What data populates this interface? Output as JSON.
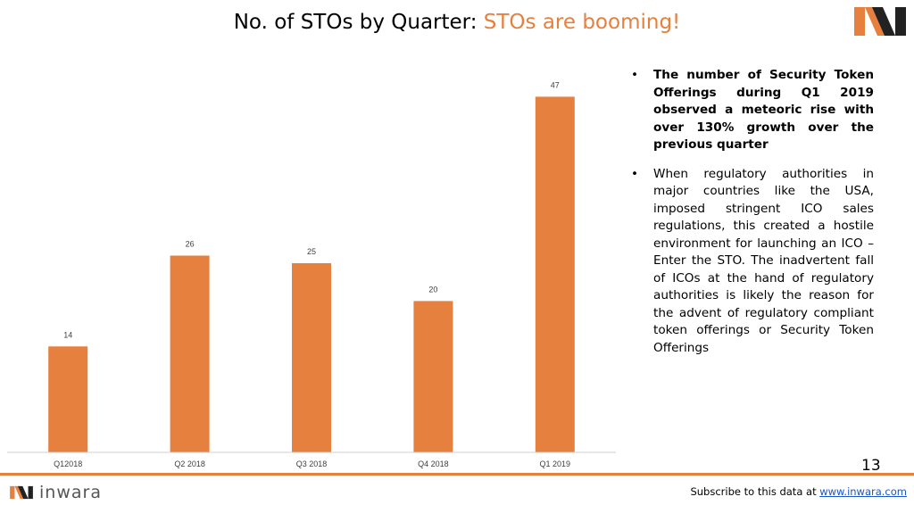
{
  "header": {
    "title_main": "No. of STOs by Quarter: ",
    "title_accent": "STOs are booming!",
    "logo": "inwara-logo"
  },
  "colors": {
    "accent": "#e5803f",
    "bar": "#e5803f",
    "link": "#1a56c8"
  },
  "chart_data": {
    "type": "bar",
    "categories": [
      "Q12018",
      "Q2 2018",
      "Q3 2018",
      "Q4 2018",
      "Q1 2019"
    ],
    "values": [
      14,
      26,
      25,
      20,
      47
    ],
    "title": "",
    "xlabel": "",
    "ylabel": "",
    "ylim": [
      0,
      52
    ],
    "grid": false,
    "data_labels": true
  },
  "bullets": [
    {
      "text": "The number of Security Token Offerings during Q1 2019 observed a meteoric rise with over 130% growth over the previous quarter",
      "bold": true
    },
    {
      "text": "When regulatory authorities in major countries like the USA, imposed stringent ICO sales regulations, this created a hostile environment for launching an ICO – Enter the STO. The inadvertent fall of ICOs at the hand of regulatory authorities is likely the reason for the advent of regulatory compliant token offerings or Security Token Offerings",
      "bold": false
    }
  ],
  "page_number": "13",
  "footer": {
    "brand": "inwara",
    "subscribe_text": "Subscribe to this data at ",
    "subscribe_link": "www.inwara.com"
  }
}
